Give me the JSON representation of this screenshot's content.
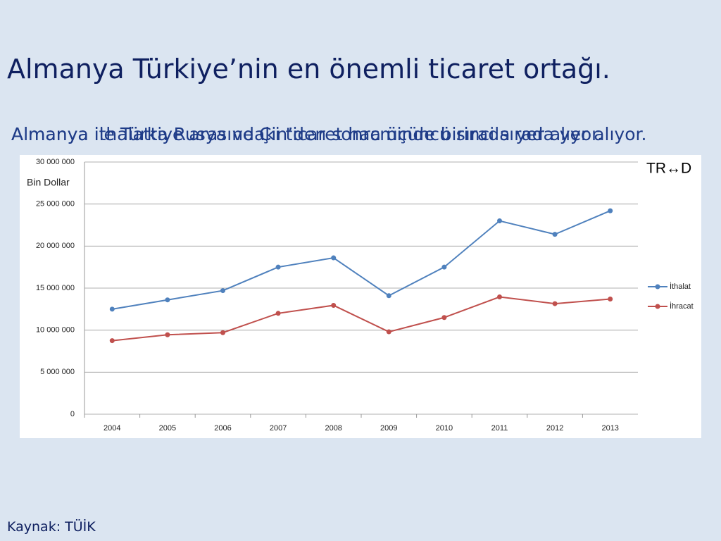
{
  "title": "Almanya Türkiye’nin en önemli ticaret ortağı.",
  "subtitles": [
    "Almanya ithalatta Rusya ve Çin’den sonra üçüncü sırada yer alıyor.",
    "Almanya ile Türkiye arasındaki ticaret hacminde birinci sırada yer alıyor."
  ],
  "chart_data": {
    "type": "line",
    "y_label": "Bin Dollar",
    "annotation": "TR↔D",
    "categories": [
      "2004",
      "2005",
      "2006",
      "2007",
      "2008",
      "2009",
      "2010",
      "2011",
      "2012",
      "2013"
    ],
    "series": [
      {
        "name": "İthalat",
        "color": "#4f81bd",
        "values": [
          12500000,
          13600000,
          14700000,
          17500000,
          18600000,
          14100000,
          17500000,
          23000000,
          21400000,
          24200000
        ]
      },
      {
        "name": "İhracat",
        "color": "#c0504d",
        "values": [
          8750000,
          9450000,
          9700000,
          12000000,
          12950000,
          9800000,
          11500000,
          13950000,
          13150000,
          13700000
        ]
      }
    ],
    "ylim": [
      0,
      30000000
    ],
    "yticks": [
      0,
      {
        "value": 5000000,
        "label": "5 000 000"
      },
      {
        "value": 10000000,
        "label": "10 000 000"
      },
      {
        "value": 15000000,
        "label": "15 000 000"
      },
      {
        "value": 20000000,
        "label": "20 000 000"
      },
      {
        "value": 25000000,
        "label": "25 000 000"
      },
      {
        "value": 30000000,
        "label": "30 000 000"
      }
    ],
    "grid": true,
    "legend": "right"
  },
  "source": "Kaynak: TÜİK"
}
